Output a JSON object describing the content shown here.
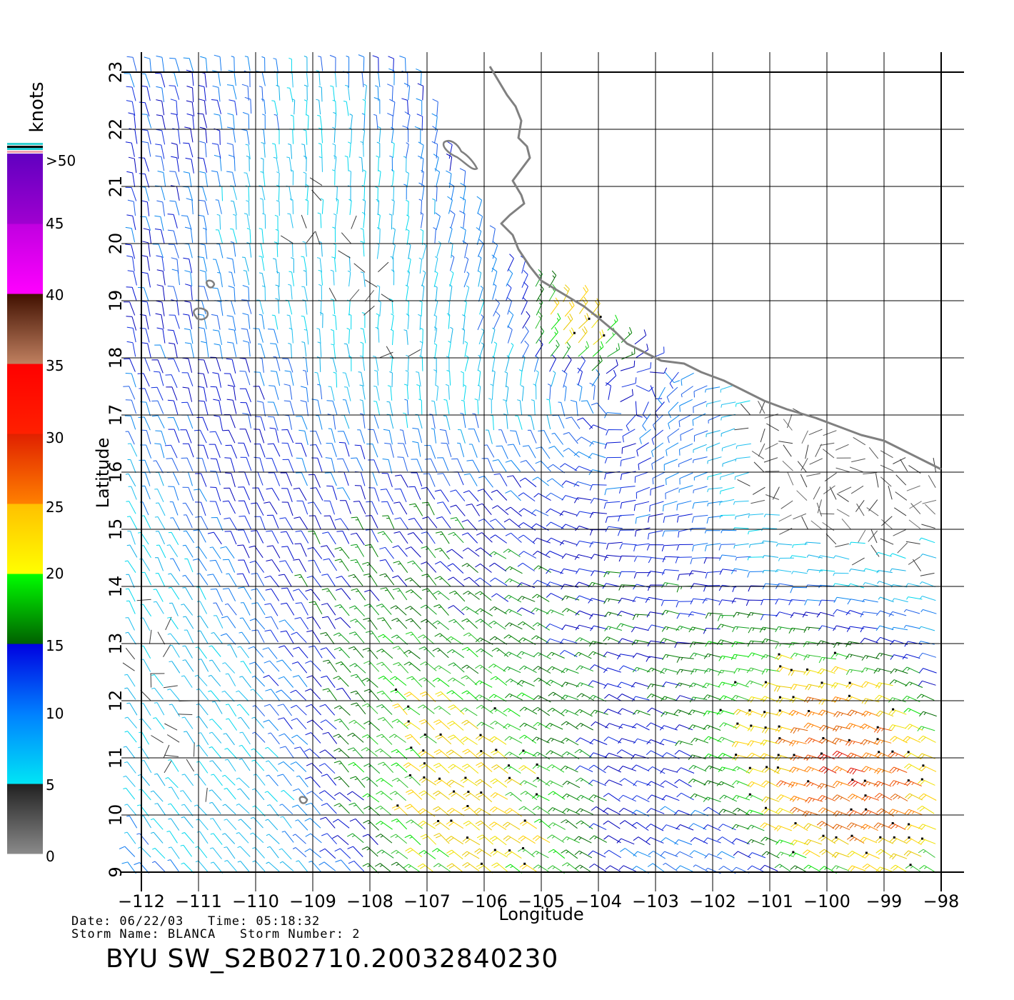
{
  "map": {
    "xlabel": "Longitude",
    "ylabel": "Latitude",
    "lon_range": [
      -112,
      -98
    ],
    "lat_range": [
      9,
      23
    ],
    "lon_ticks": [
      "−112",
      "−111",
      "−110",
      "−109",
      "−108",
      "−107",
      "−106",
      "−105",
      "−104",
      "−103",
      "−102",
      "−101",
      "−100",
      "−99",
      "−98"
    ],
    "lat_ticks": [
      "9",
      "10",
      "11",
      "12",
      "13",
      "14",
      "15",
      "16",
      "17",
      "18",
      "19",
      "20",
      "21",
      "22",
      "23"
    ],
    "grid": true,
    "coastline_color": "#808080"
  },
  "legend": {
    "unit": "knots",
    "labels": [
      ">50",
      "45",
      "40",
      "35",
      "30",
      "25",
      "20",
      "15",
      "10",
      "5",
      "0"
    ],
    "bands": [
      {
        "from": 0,
        "to": 5,
        "colors": [
          "#8a8a8a",
          "#202020"
        ]
      },
      {
        "from": 5,
        "to": 10,
        "colors": [
          "#00e5f5",
          "#0080ff"
        ]
      },
      {
        "from": 10,
        "to": 15,
        "colors": [
          "#0080ff",
          "#0000e0"
        ]
      },
      {
        "from": 15,
        "to": 20,
        "colors": [
          "#006000",
          "#00ff00"
        ]
      },
      {
        "from": 20,
        "to": 25,
        "colors": [
          "#ffff00",
          "#ffc000"
        ]
      },
      {
        "from": 25,
        "to": 30,
        "colors": [
          "#ff8000",
          "#e02000"
        ]
      },
      {
        "from": 30,
        "to": 35,
        "colors": [
          "#ff2000",
          "#ff0000"
        ]
      },
      {
        "from": 35,
        "to": 40,
        "colors": [
          "#c08060",
          "#401000"
        ]
      },
      {
        "from": 40,
        "to": 45,
        "colors": [
          "#ff00ff",
          "#c000e0"
        ]
      },
      {
        "from": 45,
        "to": 50,
        "colors": [
          "#a000d0",
          "#6000c0"
        ]
      }
    ]
  },
  "footer": {
    "date_line": "Date: 06/22/03   Time: 05:18:32",
    "storm_line": "Storm Name: BLANCA   Storm Number: 2",
    "title": "BYU SW_S2B02710.20032840230"
  }
}
